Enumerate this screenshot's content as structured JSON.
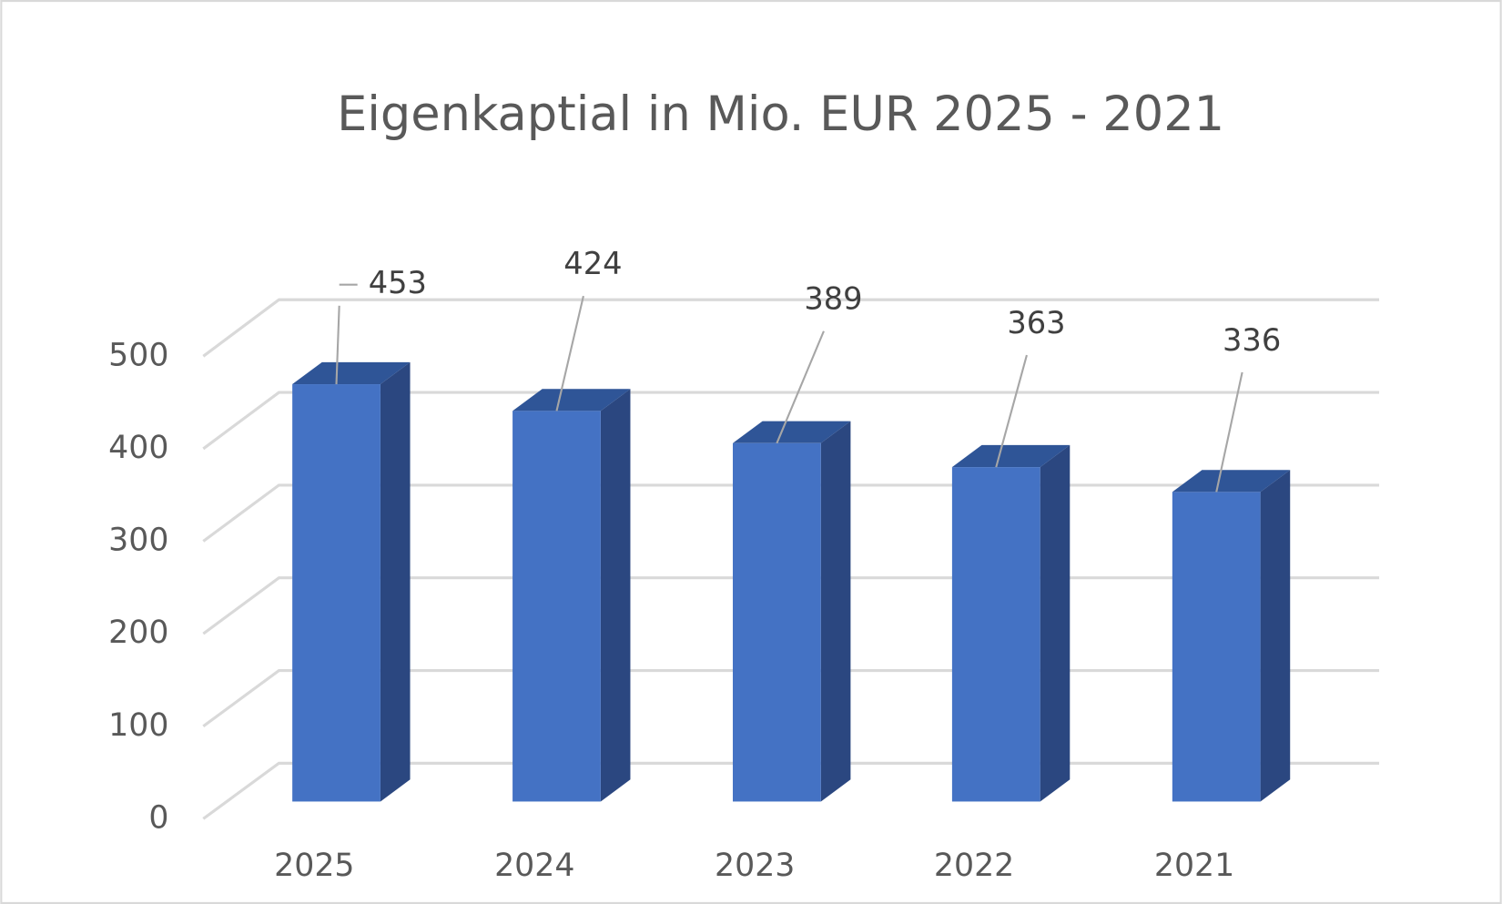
{
  "chart_data": {
    "type": "bar3d",
    "title": "Eigenkaptial in Mio. EUR 2025 - 2021",
    "categories": [
      "2025",
      "2024",
      "2023",
      "2022",
      "2021"
    ],
    "values": [
      453,
      424,
      389,
      363,
      336
    ],
    "color": "#4472c4",
    "ylim": [
      0,
      500
    ],
    "yticks": [
      0,
      100,
      200,
      300,
      400,
      500
    ],
    "grid": true,
    "data_labels": true
  }
}
